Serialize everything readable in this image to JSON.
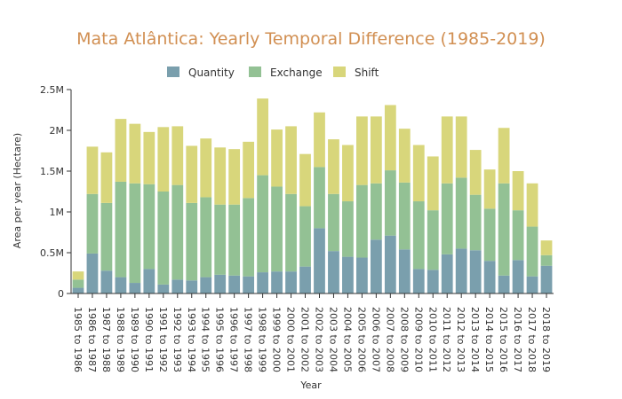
{
  "chart_data": {
    "type": "bar",
    "stacked": true,
    "title": "Mata Atlântica: Yearly Temporal Difference (1985-2019)",
    "xlabel": "Year",
    "ylabel": "Area per year (Hectare)",
    "ylim": [
      0,
      2500000
    ],
    "yticks": [
      0,
      500000,
      1000000,
      1500000,
      2000000,
      2500000
    ],
    "ytick_labels": [
      "0",
      "0.5M",
      "1M",
      "1.5M",
      "2M",
      "2.5M"
    ],
    "legend_position": "top-center",
    "categories": [
      "1985 to 1986",
      "1986 to 1987",
      "1987 to 1988",
      "1988 to 1989",
      "1989 to 1990",
      "1990 to 1991",
      "1991 to 1992",
      "1992 to 1993",
      "1993 to 1994",
      "1994 to 1995",
      "1995 to 1996",
      "1996 to 1997",
      "1997 to 1998",
      "1998 to 1999",
      "1999 to 2000",
      "2000 to 2001",
      "2001 to 2002",
      "2002 to 2003",
      "2003 to 2004",
      "2004 to 2005",
      "2005 to 2006",
      "2006 to 2007",
      "2007 to 2008",
      "2008 to 2009",
      "2009 to 2010",
      "2010 to 2011",
      "2011 to 2012",
      "2012 to 2013",
      "2013 to 2014",
      "2014 to 2015",
      "2015 to 2016",
      "2016 to 2017",
      "2017 to 2018",
      "2018 to 2019"
    ],
    "series": [
      {
        "name": "Quantity",
        "color": "#7a9fad",
        "values": [
          70000,
          490000,
          280000,
          200000,
          130000,
          300000,
          110000,
          170000,
          160000,
          200000,
          230000,
          220000,
          210000,
          260000,
          270000,
          270000,
          330000,
          800000,
          520000,
          450000,
          440000,
          660000,
          710000,
          540000,
          300000,
          290000,
          480000,
          550000,
          530000,
          400000,
          220000,
          410000,
          210000,
          340000
        ]
      },
      {
        "name": "Exchange",
        "color": "#93c194",
        "values": [
          100000,
          730000,
          830000,
          1170000,
          1220000,
          1040000,
          1140000,
          1160000,
          950000,
          980000,
          860000,
          870000,
          960000,
          1190000,
          1040000,
          950000,
          740000,
          750000,
          700000,
          680000,
          890000,
          690000,
          800000,
          820000,
          830000,
          730000,
          870000,
          870000,
          680000,
          640000,
          1130000,
          610000,
          610000,
          130000
        ]
      },
      {
        "name": "Shift",
        "color": "#d8d67b",
        "values": [
          100000,
          580000,
          620000,
          770000,
          730000,
          640000,
          790000,
          720000,
          700000,
          720000,
          700000,
          680000,
          690000,
          940000,
          700000,
          830000,
          640000,
          670000,
          670000,
          690000,
          840000,
          820000,
          800000,
          660000,
          690000,
          660000,
          820000,
          750000,
          550000,
          480000,
          680000,
          480000,
          530000,
          180000
        ]
      }
    ]
  }
}
